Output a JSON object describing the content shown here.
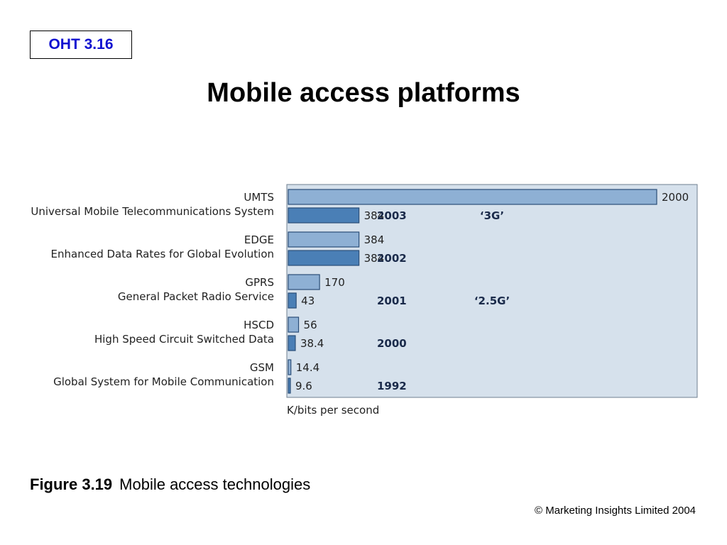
{
  "slide": {
    "tag": "OHT 3.16",
    "title": "Mobile access platforms",
    "caption_label": "Figure 3.19",
    "caption_text": "Mobile access technologies",
    "copyright": "© Marketing Insights Limited 2004"
  },
  "colors": {
    "panel": "#d6e1ec",
    "light_bar": "#8eb0d4",
    "dark_bar": "#4a7fb6",
    "bar_border": "#2a4e78",
    "year_text": "#1a2a4a"
  },
  "chart_data": {
    "type": "bar",
    "orientation": "horizontal",
    "xlabel": "K/bits per second",
    "groups": [
      {
        "name": "UMTS",
        "full_name": "Universal Mobile Telecommunications System",
        "bars": [
          {
            "value": 2000,
            "label": "2000",
            "style": "light"
          },
          {
            "value": 384,
            "label": "384",
            "style": "dark",
            "year": "2003",
            "generation": "‘3G’"
          }
        ]
      },
      {
        "name": "EDGE",
        "full_name": "Enhanced Data Rates for Global Evolution",
        "bars": [
          {
            "value": 384,
            "label": "384",
            "style": "light"
          },
          {
            "value": 384,
            "label": "384",
            "style": "dark",
            "year": "2002"
          }
        ]
      },
      {
        "name": "GPRS",
        "full_name": "General Packet Radio Service",
        "bars": [
          {
            "value": 170,
            "label": "170",
            "style": "light"
          },
          {
            "value": 43,
            "label": "43",
            "style": "dark",
            "year": "2001",
            "generation": "‘2.5G’"
          }
        ]
      },
      {
        "name": "HSCD",
        "full_name": "High Speed Circuit Switched Data",
        "bars": [
          {
            "value": 56,
            "label": "56",
            "style": "light"
          },
          {
            "value": 38.4,
            "label": "38.4",
            "style": "dark",
            "year": "2000"
          }
        ]
      },
      {
        "name": "GSM",
        "full_name": "Global System for Mobile Communication",
        "bars": [
          {
            "value": 14.4,
            "label": "14.4",
            "style": "light"
          },
          {
            "value": 9.6,
            "label": "9.6",
            "style": "dark",
            "year": "1992"
          }
        ]
      }
    ]
  }
}
